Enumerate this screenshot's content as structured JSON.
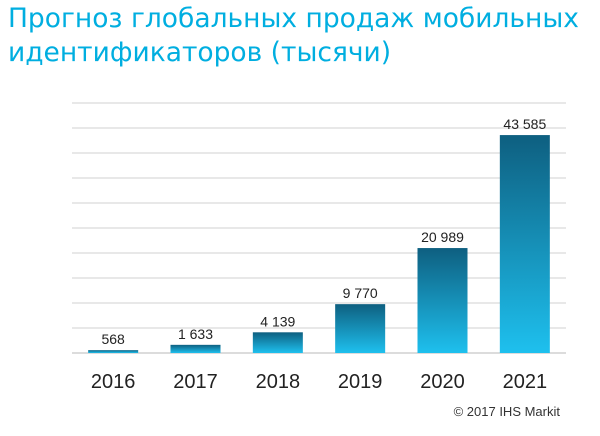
{
  "title_lines": [
    "Прогноз глобальных продаж мобильных",
    "идентификаторов (тысячи)"
  ],
  "credit": "© 2017 IHS Markit",
  "colors": {
    "title": "#00aee0",
    "bar_top": "#0e5f80",
    "bar_bottom": "#1ec0ee",
    "grid": "#d0d0d0"
  },
  "chart_data": {
    "type": "bar",
    "categories": [
      "2016",
      "2017",
      "2018",
      "2019",
      "2020",
      "2021"
    ],
    "values": [
      568,
      1633,
      4139,
      9770,
      20989,
      43585
    ],
    "data_labels": [
      "568",
      "1 633",
      "4 139",
      "9 770",
      "20 989",
      "43 585"
    ],
    "title": "Прогноз глобальных продаж мобильных идентификаторов (тысячи)",
    "xlabel": "",
    "ylabel": "",
    "ylim": [
      0,
      50000
    ],
    "grid": true,
    "legend": "none"
  }
}
